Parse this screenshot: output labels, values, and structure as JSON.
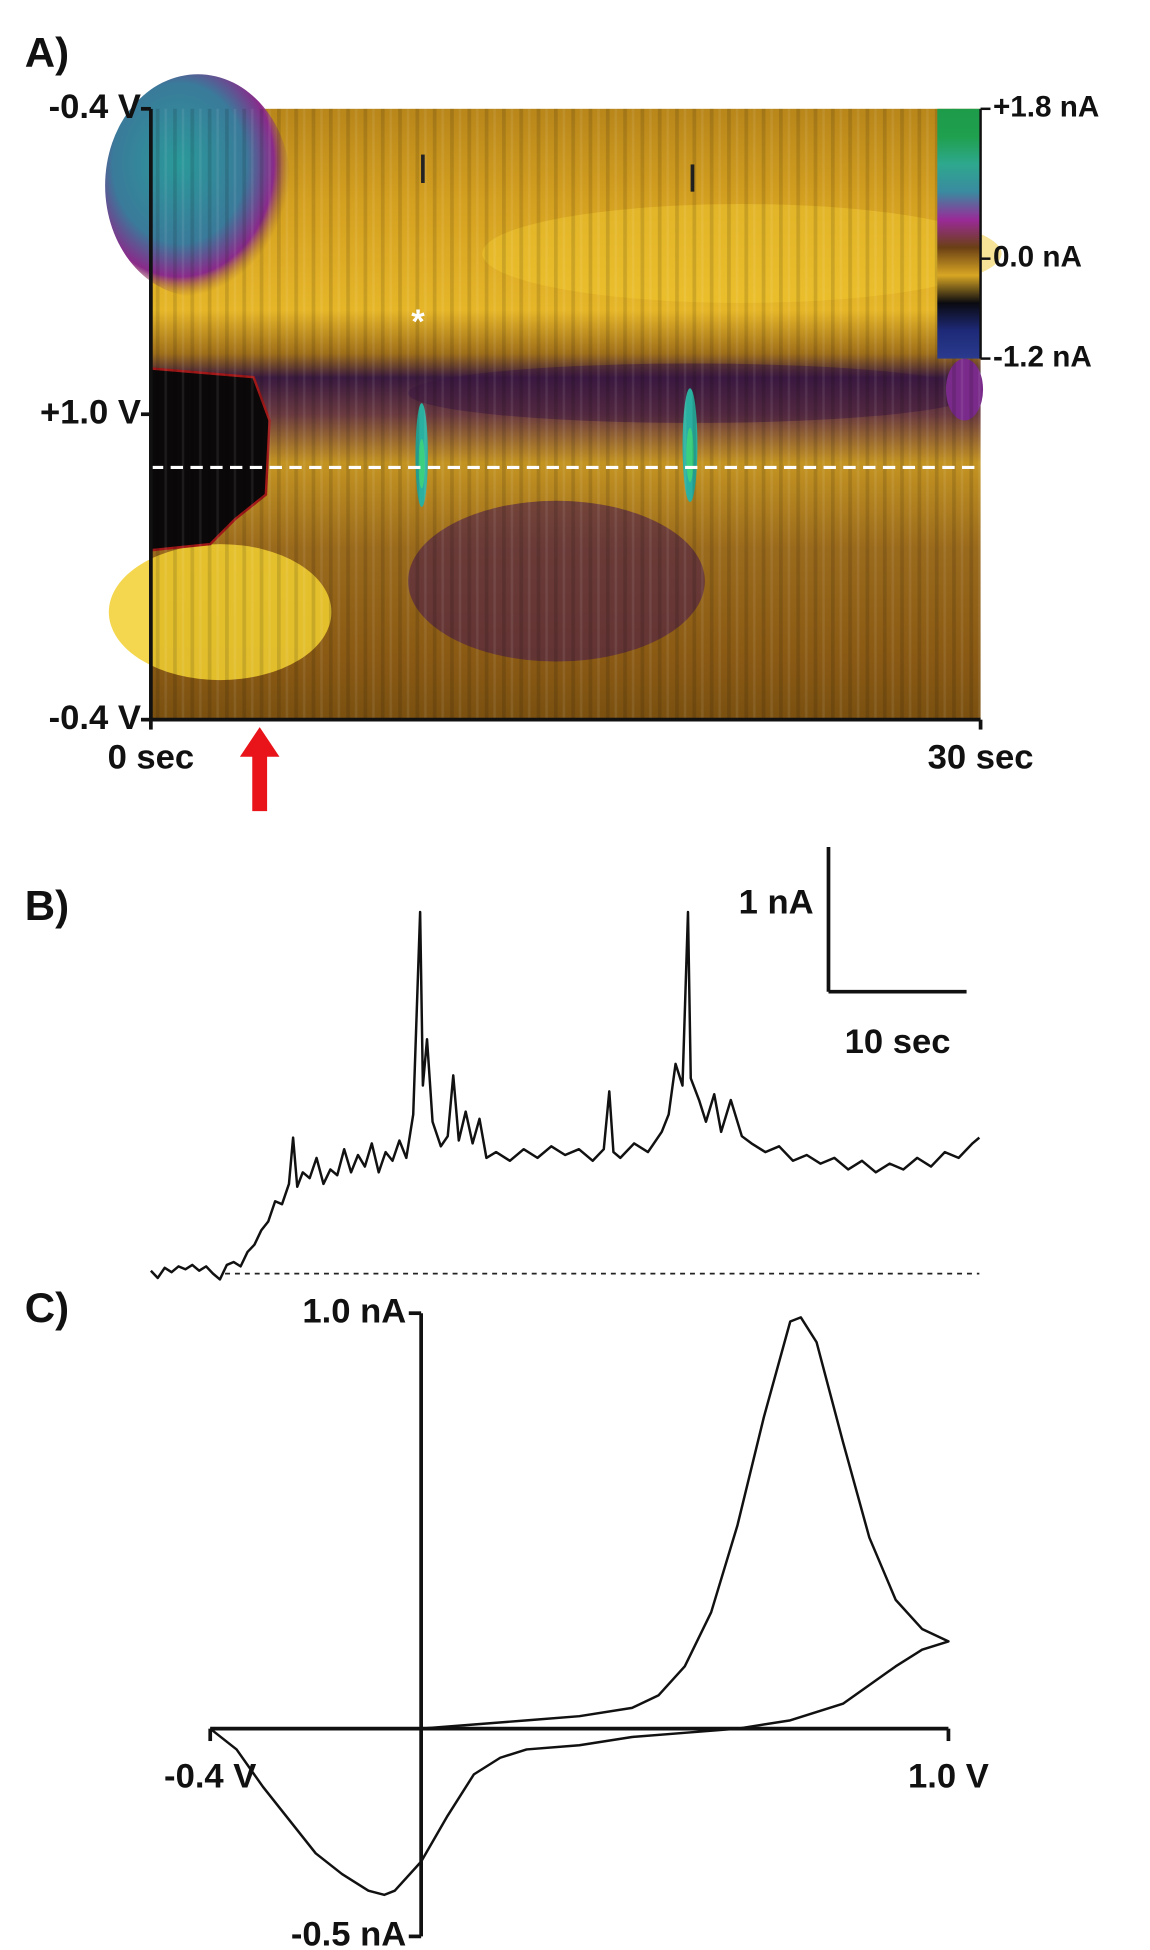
{
  "chart_data": [
    {
      "type": "heatmap",
      "panel": "A)",
      "annotation": "*",
      "xlim": [
        0,
        30
      ],
      "xticks": [
        {
          "value": 0,
          "label": "0 sec"
        },
        {
          "value": 30,
          "label": "30 sec"
        }
      ],
      "ylabels": [
        "-0.4 V",
        "+1.0 V",
        "-0.4 V"
      ],
      "colorlim": [
        -1.2,
        1.8
      ],
      "colorticks": [
        {
          "value": 1.8,
          "label": "+1.8 nA"
        },
        {
          "value": 0,
          "label": "0.0 nA"
        },
        {
          "value": -1.2,
          "label": "-1.2 nA"
        }
      ],
      "colors": [
        "#1d9b4a",
        "#1fa04e",
        "#2ea88e",
        "#3a8aa0",
        "#9a2a98",
        "#6a4014",
        "#d8a624",
        "#0a0a10",
        "#1e2a78",
        "#2a3a8e"
      ]
    },
    {
      "type": "line",
      "panel": "B)",
      "color": "#111111",
      "x": [
        0,
        0.5,
        1,
        1.5,
        2,
        2.5,
        3,
        3.5,
        4,
        4.5,
        5,
        5.5,
        6,
        6.5,
        7,
        7.5,
        8,
        8.5,
        9,
        9.5,
        10,
        10.3,
        10.6,
        11,
        11.5,
        12,
        12.5,
        13,
        13.5,
        14,
        14.5,
        15,
        15.5,
        16,
        16.5,
        17,
        17.5,
        18,
        18.5,
        19,
        19.5,
        19.7,
        20,
        20.4,
        21,
        21.5,
        21.9,
        22.3,
        22.8,
        23.3,
        23.8,
        24.3,
        25,
        26,
        27,
        28,
        29,
        30,
        31,
        32,
        32.8,
        33.2,
        33.5,
        34,
        35,
        36,
        37,
        37.5,
        38,
        38.5,
        38.9,
        39.1,
        39.7,
        40.2,
        40.8,
        41.3,
        42,
        42.8,
        43.5,
        44.5,
        45.5,
        46.5,
        47.5,
        48.5,
        49.5,
        50.5,
        51.5,
        52.5,
        53.5,
        54.5,
        55.5,
        56.5,
        57.5,
        58.5,
        59.5,
        60
      ],
      "values": [
        0.02,
        -0.03,
        0.04,
        0.01,
        0.05,
        0.03,
        0.06,
        0.02,
        0.05,
        0.0,
        -0.04,
        0.06,
        0.08,
        0.05,
        0.15,
        0.2,
        0.3,
        0.36,
        0.5,
        0.48,
        0.62,
        0.94,
        0.6,
        0.7,
        0.66,
        0.8,
        0.62,
        0.72,
        0.68,
        0.86,
        0.7,
        0.82,
        0.74,
        0.9,
        0.7,
        0.84,
        0.78,
        0.92,
        0.8,
        1.1,
        2.5,
        1.3,
        1.62,
        1.05,
        0.88,
        0.95,
        1.37,
        0.92,
        1.12,
        0.9,
        1.07,
        0.8,
        0.84,
        0.78,
        0.86,
        0.8,
        0.88,
        0.82,
        0.86,
        0.78,
        0.86,
        1.26,
        0.84,
        0.8,
        0.9,
        0.84,
        0.98,
        1.1,
        1.45,
        1.3,
        2.5,
        1.35,
        1.2,
        1.05,
        1.24,
        0.98,
        1.2,
        0.95,
        0.9,
        0.84,
        0.88,
        0.78,
        0.82,
        0.76,
        0.8,
        0.72,
        0.78,
        0.7,
        0.76,
        0.72,
        0.8,
        0.74,
        0.84,
        0.8,
        0.9,
        0.94
      ],
      "xlim": [
        0,
        60
      ],
      "ylim": [
        -0.1,
        2.9
      ],
      "scalebar": {
        "x": {
          "value": 10,
          "label": "10 sec"
        },
        "y": {
          "value": 1,
          "label": "1 nA"
        }
      }
    },
    {
      "type": "line",
      "panel": "C)",
      "color": "#111111",
      "x": [
        -0.4,
        -0.3,
        -0.2,
        -0.1,
        0,
        0.1,
        0.2,
        0.3,
        0.4,
        0.45,
        0.5,
        0.55,
        0.6,
        0.65,
        0.7,
        0.72,
        0.75,
        0.8,
        0.85,
        0.9,
        0.95,
        1.0,
        0.95,
        0.9,
        0.8,
        0.7,
        0.6,
        0.5,
        0.4,
        0.3,
        0.2,
        0.15,
        0.1,
        0.05,
        0.0,
        -0.05,
        -0.07,
        -0.1,
        -0.15,
        -0.2,
        -0.25,
        -0.3,
        -0.35,
        -0.4
      ],
      "values": [
        0,
        0,
        0,
        0,
        0,
        0.01,
        0.02,
        0.03,
        0.05,
        0.08,
        0.15,
        0.28,
        0.49,
        0.75,
        0.98,
        0.99,
        0.93,
        0.69,
        0.46,
        0.31,
        0.24,
        0.21,
        0.19,
        0.15,
        0.06,
        0.02,
        0,
        -0.01,
        -0.02,
        -0.04,
        -0.05,
        -0.07,
        -0.11,
        -0.21,
        -0.32,
        -0.39,
        -0.4,
        -0.39,
        -0.35,
        -0.3,
        -0.22,
        -0.14,
        -0.05,
        0
      ],
      "xlim": [
        -0.4,
        1.0
      ],
      "ylim": [
        -0.5,
        1.0
      ],
      "xticks": [
        {
          "value": -0.4,
          "label": "-0.4 V"
        },
        {
          "value": 1.0,
          "label": "1.0 V"
        }
      ],
      "yticks": [
        {
          "value": 1.0,
          "label": "1.0 nA"
        },
        {
          "value": -0.5,
          "label": "-0.5 nA"
        }
      ]
    }
  ]
}
